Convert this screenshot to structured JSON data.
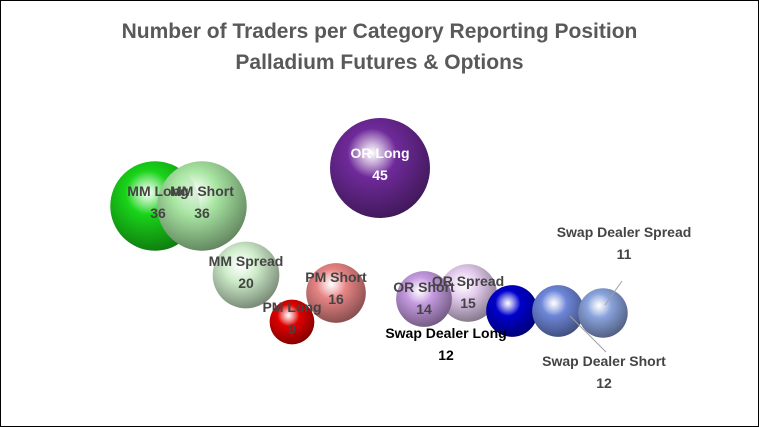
{
  "chart_data": {
    "type": "bubble",
    "title": "Number of Traders per Category Reporting Position",
    "subtitle": "Palladium Futures & Options",
    "xlabel": "",
    "ylabel": "",
    "series": [
      {
        "name": "MM Long",
        "value": 36,
        "color": "#19D419"
      },
      {
        "name": "MM Short",
        "value": 36,
        "color": "#A9E6A3"
      },
      {
        "name": "MM Spread",
        "value": 20,
        "color": "#CFEDCB"
      },
      {
        "name": "PM Long",
        "value": 9,
        "color": "#E00000"
      },
      {
        "name": "PM Short",
        "value": 16,
        "color": "#E88585"
      },
      {
        "name": "OR Long",
        "value": 45,
        "color": "#6F2A9A"
      },
      {
        "name": "OR Short",
        "value": 14,
        "color": "#C59BE0"
      },
      {
        "name": "OR Spread",
        "value": 15,
        "color": "#E4CCEE"
      },
      {
        "name": "Swap Dealer Long",
        "value": 12,
        "color": "#0000CC"
      },
      {
        "name": "Swap Dealer Short",
        "value": 12,
        "color": "#6E86D9"
      },
      {
        "name": "Swap Dealer Spread",
        "value": 11,
        "color": "#8AA3DD"
      }
    ]
  }
}
